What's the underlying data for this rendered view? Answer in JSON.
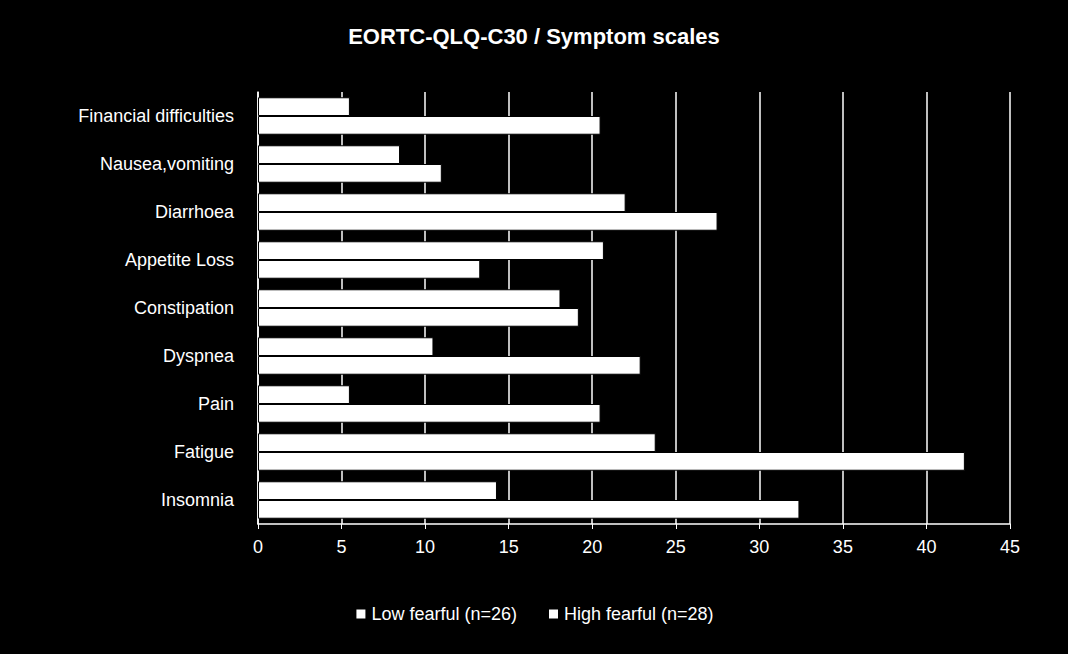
{
  "chart_data": {
    "type": "bar",
    "orientation": "horizontal",
    "title": "EORTC-QLQ-C30 / Symptom scales",
    "categories": [
      "Insomnia",
      "Fatigue",
      "Pain",
      "Dyspnea",
      "Constipation",
      "Appetite Loss",
      "Diarrhoea",
      "Nausea,vomiting",
      "Financial difficulties"
    ],
    "series": [
      {
        "name": "Low fearful (n=26)",
        "color": "#ffffff",
        "values": [
          32.4,
          42.3,
          20.5,
          22.9,
          19.2,
          13.3,
          27.5,
          11.0,
          20.5
        ]
      },
      {
        "name": "High fearful (n=28)",
        "color": "#ffffff",
        "values": [
          14.3,
          23.8,
          5.5,
          10.5,
          18.1,
          20.7,
          22.0,
          8.5,
          5.5
        ]
      }
    ],
    "xlim": [
      0,
      45
    ],
    "xticks": [
      0,
      5,
      10,
      15,
      20,
      25,
      30,
      35,
      40,
      45
    ],
    "grid": true,
    "legend": "bottom"
  }
}
